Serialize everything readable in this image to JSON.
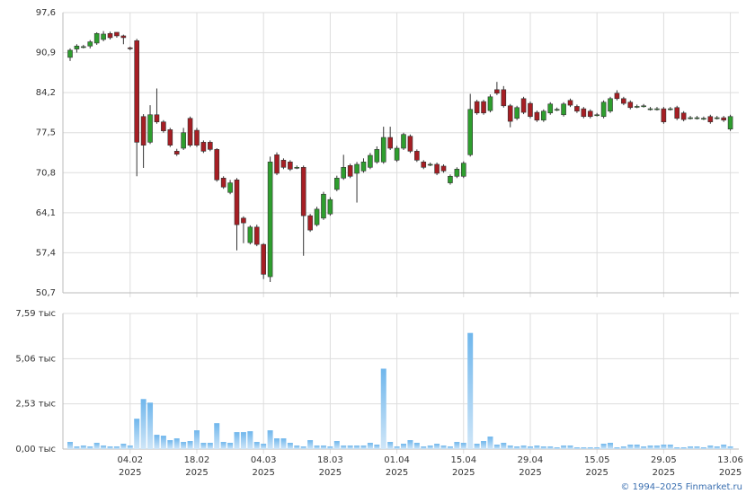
{
  "chart_data": [
    {
      "type": "candlestick",
      "up_color": "#2e9e2e",
      "down_color": "#a61e24",
      "grid": true,
      "ylim": [
        50.7,
        97.6
      ],
      "yticks": [
        {
          "value": 50.7,
          "label": "50,7"
        },
        {
          "value": 57.4,
          "label": "57,4"
        },
        {
          "value": 64.1,
          "label": "64,1"
        },
        {
          "value": 70.8,
          "label": "70,8"
        },
        {
          "value": 77.5,
          "label": "77,5"
        },
        {
          "value": 84.2,
          "label": "84,2"
        },
        {
          "value": 90.9,
          "label": "90,9"
        },
        {
          "value": 97.6,
          "label": "97,6"
        }
      ],
      "open": [
        90.1,
        91.5,
        91.9,
        92.0,
        92.5,
        93.1,
        94.1,
        94.3,
        93.7,
        91.7,
        92.9,
        80.2,
        75.9,
        80.5,
        79.3,
        78.0,
        74.4,
        74.9,
        79.9,
        77.9,
        75.9,
        75.9,
        74.7,
        69.9,
        67.5,
        69.6,
        63.2,
        59.1,
        61.7,
        58.8,
        53.4,
        73.8,
        72.9,
        72.6,
        71.7,
        71.7,
        63.6,
        62.1,
        63.2,
        63.9,
        68.0,
        69.9,
        72.0,
        70.7,
        71.1,
        71.7,
        72.6,
        72.6,
        76.7,
        72.9,
        74.9,
        76.9,
        74.4,
        72.6,
        72.2,
        72.2,
        71.9,
        69.1,
        70.2,
        70.2,
        73.8,
        82.7,
        82.7,
        81.2,
        84.7,
        84.7,
        82.0,
        79.9,
        83.2,
        82.4,
        80.9,
        79.6,
        80.8,
        81.4,
        80.5,
        82.9,
        81.9,
        81.5,
        81.1,
        80.5,
        80.2,
        81.1,
        84.1,
        83.2,
        82.6,
        81.9,
        82.0,
        81.5,
        81.5,
        81.5,
        81.5,
        81.7,
        80.8,
        80.0,
        80.0,
        79.9,
        80.2,
        80.0,
        80.0,
        78.1
      ],
      "high": [
        91.6,
        92.3,
        92.2,
        93.0,
        94.3,
        94.5,
        94.4,
        94.3,
        93.9,
        91.9,
        93.2,
        80.6,
        82.1,
        84.9,
        79.6,
        78.3,
        74.8,
        78.3,
        80.2,
        78.3,
        76.2,
        76.2,
        74.9,
        70.2,
        69.6,
        69.9,
        63.5,
        62.0,
        62.1,
        59.0,
        73.5,
        74.2,
        73.2,
        72.9,
        72.0,
        72.0,
        63.9,
        65.1,
        67.6,
        66.7,
        70.3,
        73.8,
        72.3,
        72.6,
        73.2,
        74.1,
        75.2,
        78.5,
        78.5,
        75.3,
        77.5,
        77.2,
        74.7,
        72.9,
        72.5,
        72.5,
        72.2,
        70.5,
        71.7,
        72.7,
        84.0,
        83.0,
        83.0,
        83.9,
        86.0,
        85.3,
        82.3,
        82.0,
        83.5,
        82.7,
        81.2,
        81.4,
        82.6,
        81.7,
        82.6,
        83.2,
        82.2,
        81.8,
        81.4,
        80.8,
        82.9,
        83.5,
        84.6,
        83.5,
        82.9,
        82.2,
        82.3,
        81.8,
        81.8,
        81.8,
        81.8,
        82.0,
        81.1,
        80.3,
        80.3,
        80.2,
        80.5,
        80.3,
        80.3,
        80.5
      ],
      "low": [
        89.5,
        90.9,
        91.6,
        91.6,
        92.2,
        92.8,
        93.1,
        93.4,
        92.3,
        91.3,
        70.2,
        71.6,
        75.6,
        79.0,
        77.5,
        75.1,
        73.6,
        74.6,
        75.1,
        75.1,
        74.1,
        74.4,
        69.3,
        68.1,
        67.2,
        57.8,
        59.0,
        58.8,
        58.5,
        53.0,
        52.5,
        70.4,
        71.4,
        71.1,
        71.4,
        56.9,
        60.9,
        61.8,
        62.9,
        63.6,
        67.7,
        69.6,
        69.9,
        65.8,
        70.8,
        71.4,
        72.3,
        72.3,
        74.6,
        72.6,
        74.6,
        74.1,
        72.6,
        71.4,
        71.9,
        70.4,
        70.8,
        68.8,
        69.9,
        69.9,
        73.5,
        80.5,
        80.5,
        80.9,
        83.8,
        81.7,
        78.4,
        79.6,
        80.6,
        79.9,
        79.3,
        79.3,
        80.5,
        81.1,
        80.2,
        81.8,
        80.8,
        79.9,
        79.9,
        80.2,
        79.9,
        80.8,
        82.9,
        82.1,
        81.4,
        81.6,
        81.7,
        81.2,
        81.2,
        79.0,
        81.2,
        79.6,
        79.4,
        79.7,
        79.7,
        79.6,
        79.0,
        79.7,
        79.3,
        77.8
      ],
      "close": [
        91.3,
        92.0,
        91.9,
        92.7,
        94.1,
        94.0,
        93.4,
        93.7,
        93.4,
        91.6,
        75.9,
        75.4,
        80.5,
        79.3,
        77.8,
        75.4,
        73.9,
        77.5,
        75.4,
        75.4,
        74.4,
        74.7,
        69.6,
        68.4,
        69.1,
        62.1,
        62.4,
        61.7,
        58.8,
        53.8,
        72.6,
        70.7,
        71.7,
        71.4,
        71.7,
        63.6,
        61.2,
        64.7,
        67.2,
        66.3,
        69.9,
        71.7,
        70.2,
        72.2,
        72.6,
        73.7,
        74.7,
        76.7,
        74.9,
        74.9,
        77.2,
        74.4,
        72.9,
        71.7,
        72.2,
        70.7,
        71.1,
        70.2,
        71.4,
        72.4,
        81.4,
        80.8,
        80.8,
        83.5,
        84.1,
        82.0,
        79.4,
        81.7,
        80.9,
        80.2,
        79.6,
        81.1,
        82.3,
        81.4,
        82.3,
        82.1,
        81.1,
        80.2,
        80.2,
        80.5,
        82.6,
        83.2,
        83.2,
        82.4,
        81.7,
        81.9,
        82.0,
        81.5,
        81.5,
        79.3,
        81.5,
        79.9,
        79.7,
        80.0,
        80.0,
        79.9,
        79.3,
        80.0,
        79.6,
        80.2
      ]
    },
    {
      "type": "bar",
      "color": "#7fbfee",
      "grid": true,
      "ylim": [
        0,
        7.59
      ],
      "yticks": [
        {
          "value": 0,
          "label": "0,00 тыс"
        },
        {
          "value": 2.53,
          "label": "2,53 тыс"
        },
        {
          "value": 5.06,
          "label": "5,06 тыс"
        },
        {
          "value": 7.59,
          "label": "7,59 тыс"
        }
      ],
      "categories": [
        null,
        null,
        null,
        null,
        null,
        null,
        null,
        null,
        null,
        "04.02",
        null,
        null,
        null,
        null,
        null,
        null,
        null,
        null,
        null,
        "18.02",
        null,
        null,
        null,
        null,
        null,
        null,
        null,
        null,
        null,
        "04.03",
        null,
        null,
        null,
        null,
        null,
        null,
        null,
        null,
        null,
        "18.03",
        null,
        null,
        null,
        null,
        null,
        null,
        null,
        null,
        null,
        "01.04",
        null,
        null,
        null,
        null,
        null,
        null,
        null,
        null,
        null,
        "15.04",
        null,
        null,
        null,
        null,
        null,
        null,
        null,
        null,
        null,
        "29.04",
        null,
        null,
        null,
        null,
        null,
        null,
        null,
        null,
        null,
        "15.05",
        null,
        null,
        null,
        null,
        null,
        null,
        null,
        null,
        null,
        "29.05",
        null,
        null,
        null,
        null,
        null,
        null,
        null,
        null,
        null,
        "13.06"
      ],
      "category_years": [
        null,
        null,
        null,
        null,
        null,
        null,
        null,
        null,
        null,
        "2025",
        null,
        null,
        null,
        null,
        null,
        null,
        null,
        null,
        null,
        "2025",
        null,
        null,
        null,
        null,
        null,
        null,
        null,
        null,
        null,
        "2025",
        null,
        null,
        null,
        null,
        null,
        null,
        null,
        null,
        null,
        "2025",
        null,
        null,
        null,
        null,
        null,
        null,
        null,
        null,
        null,
        "2025",
        null,
        null,
        null,
        null,
        null,
        null,
        null,
        null,
        null,
        "2025",
        null,
        null,
        null,
        null,
        null,
        null,
        null,
        null,
        null,
        "2025",
        null,
        null,
        null,
        null,
        null,
        null,
        null,
        null,
        null,
        "2025",
        null,
        null,
        null,
        null,
        null,
        null,
        null,
        null,
        null,
        "2025",
        null,
        null,
        null,
        null,
        null,
        null,
        null,
        null,
        null,
        "2025"
      ],
      "values": [
        0.4,
        0.15,
        0.2,
        0.15,
        0.35,
        0.2,
        0.15,
        0.15,
        0.3,
        0.2,
        1.7,
        2.8,
        2.6,
        0.8,
        0.75,
        0.5,
        0.6,
        0.4,
        0.45,
        1.05,
        0.35,
        0.35,
        1.45,
        0.4,
        0.35,
        0.95,
        0.95,
        1.0,
        0.4,
        0.3,
        1.05,
        0.6,
        0.6,
        0.35,
        0.2,
        0.15,
        0.5,
        0.2,
        0.2,
        0.15,
        0.45,
        0.2,
        0.2,
        0.2,
        0.2,
        0.35,
        0.25,
        4.5,
        0.4,
        0.15,
        0.3,
        0.5,
        0.35,
        0.15,
        0.2,
        0.3,
        0.2,
        0.15,
        0.4,
        0.35,
        6.5,
        0.3,
        0.45,
        0.7,
        0.25,
        0.35,
        0.2,
        0.15,
        0.2,
        0.15,
        0.2,
        0.15,
        0.15,
        0.1,
        0.2,
        0.2,
        0.1,
        0.1,
        0.1,
        0.1,
        0.3,
        0.35,
        0.1,
        0.15,
        0.25,
        0.25,
        0.15,
        0.2,
        0.2,
        0.25,
        0.25,
        0.1,
        0.1,
        0.15,
        0.15,
        0.1,
        0.2,
        0.15,
        0.25,
        0.15
      ]
    }
  ],
  "footer": "© 1994–2025 Finmarket.ru"
}
